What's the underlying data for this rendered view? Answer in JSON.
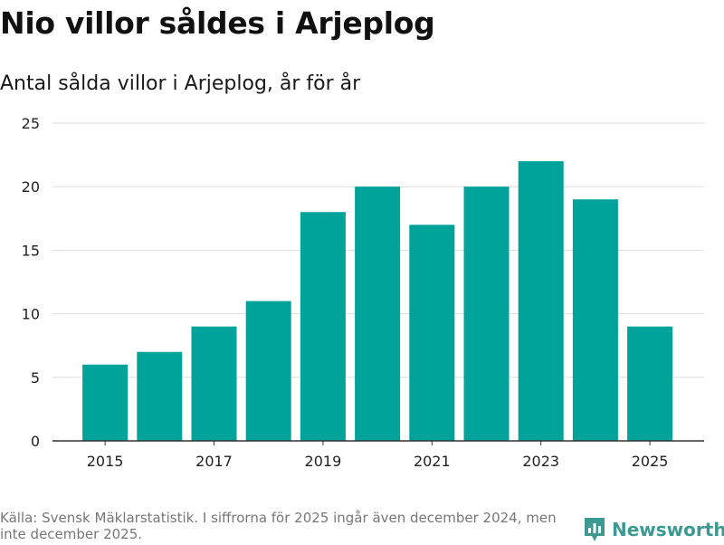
{
  "header": {
    "title": "Nio villor såldes i Arjeplog",
    "subtitle": "Antal sålda villor i Arjeplog, år för år"
  },
  "footer": {
    "source": "Källa: Svensk Mäklarstatistik. I siffrorna för 2025 ingår även december 2024, men inte december 2025.",
    "brand": "Newsworthy"
  },
  "colors": {
    "bar": "#00a39a",
    "grid": "#dddddd",
    "axis": "#333333",
    "brand": "#3d9a93"
  },
  "chart_data": {
    "type": "bar",
    "title": "Nio villor såldes i Arjeplog",
    "subtitle": "Antal sålda villor i Arjeplog, år för år",
    "xlabel": "",
    "ylabel": "",
    "categories": [
      "2015",
      "2016",
      "2017",
      "2018",
      "2019",
      "2020",
      "2021",
      "2022",
      "2023",
      "2024",
      "2025"
    ],
    "values": [
      6,
      7,
      9,
      11,
      18,
      20,
      17,
      20,
      22,
      19,
      9
    ],
    "x_tick_labels": [
      "2015",
      "2017",
      "2019",
      "2021",
      "2023",
      "2025"
    ],
    "y_ticks": [
      0,
      5,
      10,
      15,
      20,
      25
    ],
    "ylim": [
      0,
      25
    ],
    "grid": true,
    "legend": "none"
  }
}
